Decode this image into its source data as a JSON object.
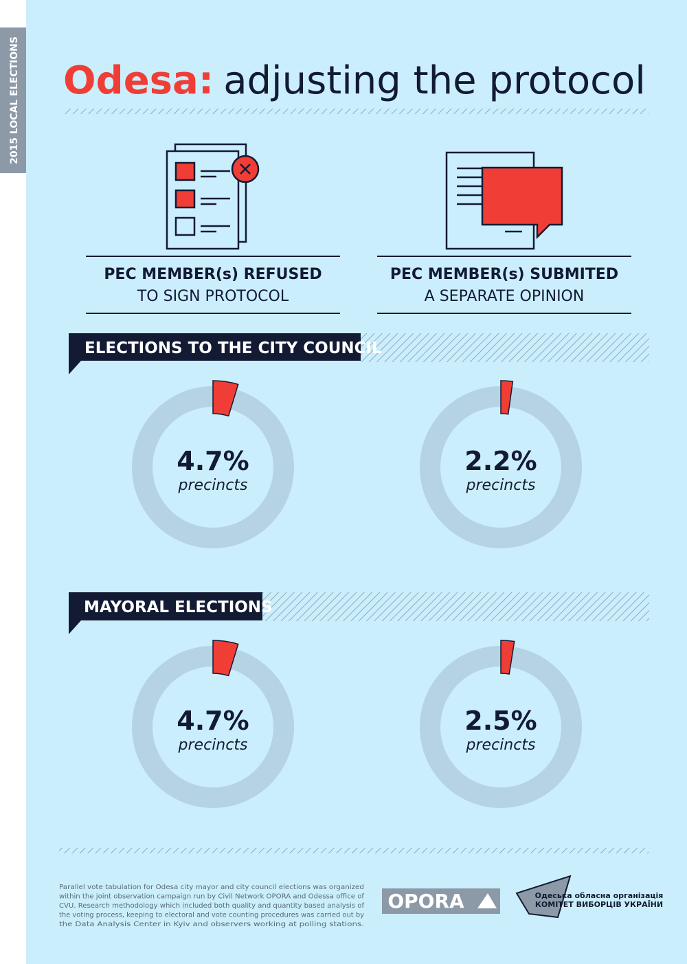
{
  "side_label": "2015 LOCAL ELECTIONS",
  "header": {
    "title_highlight": "Odesa:",
    "title_rest": "adjusting the protocol"
  },
  "columns": [
    {
      "line1": "PEC MEMBER(s) REFUSED",
      "line2": "TO SIGN PROTOCOL"
    },
    {
      "line1": "PEC MEMBER(s) SUBMITED",
      "line2": "A SEPARATE OPINION"
    }
  ],
  "sections": [
    "ELECTIONS TO THE CITY COUNCIL",
    "MAYORAL ELECTIONS"
  ],
  "chart_data": [
    {
      "type": "donut",
      "values": [
        4.7
      ],
      "value_labels": [
        "4.7%"
      ],
      "caption": "precincts",
      "color": "#f03e36"
    },
    {
      "type": "donut",
      "values": [
        2.2
      ],
      "value_labels": [
        "2.2%"
      ],
      "caption": "precincts",
      "color": "#f03e36"
    },
    {
      "type": "donut",
      "values": [
        4.7
      ],
      "value_labels": [
        "4.7%"
      ],
      "caption": "precincts",
      "color": "#f03e36"
    },
    {
      "type": "donut",
      "values": [
        2.5
      ],
      "value_labels": [
        "2.5%"
      ],
      "caption": "precincts",
      "color": "#f03e36"
    }
  ],
  "footer": {
    "text": [
      "Parallel vote tabulation for Odesa  city mayor and city council elections was organized",
      "within the joint observation campaign run by Civil Network OPORA and Odessa office of",
      "CVU. Research methodology which included both quality and quantity based analysis of",
      "the voting process, keeping to electoral and vote counting procedures was carried out by",
      "the Data Analysis Center in Kyiv and observers working at polling stations."
    ],
    "logo1": "OPORA",
    "logo2_line1": "Одеська обласна організація",
    "logo2_line2": "КОМІТЕТ ВИБОРЦІВ УКРАЇНИ"
  }
}
